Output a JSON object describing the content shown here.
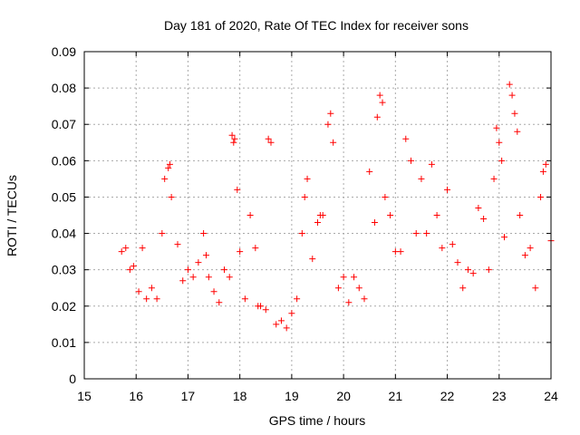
{
  "chart_data": {
    "type": "scatter",
    "title": "Day 181 of 2020, Rate Of TEC Index for receiver sons",
    "xlabel": "GPS time / hours",
    "ylabel": "ROTI / TECUs",
    "xlim": [
      15,
      24
    ],
    "ylim": [
      0,
      0.09
    ],
    "xticks": [
      15,
      16,
      17,
      18,
      19,
      20,
      21,
      22,
      23,
      24
    ],
    "yticks": [
      0,
      0.01,
      0.02,
      0.03,
      0.04,
      0.05,
      0.06,
      0.07,
      0.08,
      0.09
    ],
    "grid": true,
    "marker": "+",
    "series_color": "#ff0000",
    "series": [
      {
        "name": "ROTI",
        "x": [
          15.72,
          15.8,
          15.88,
          15.95,
          16.05,
          16.12,
          16.2,
          16.3,
          16.4,
          16.5,
          16.55,
          16.62,
          16.65,
          16.68,
          16.8,
          16.9,
          17.0,
          17.1,
          17.2,
          17.3,
          17.35,
          17.4,
          17.5,
          17.6,
          17.7,
          17.8,
          17.85,
          17.88,
          17.9,
          17.95,
          18.0,
          18.1,
          18.2,
          18.3,
          18.35,
          18.4,
          18.5,
          18.55,
          18.6,
          18.7,
          18.8,
          18.9,
          19.0,
          19.1,
          19.2,
          19.25,
          19.3,
          19.4,
          19.5,
          19.55,
          19.6,
          19.7,
          19.75,
          19.8,
          19.9,
          20.0,
          20.1,
          20.2,
          20.3,
          20.4,
          20.5,
          20.6,
          20.65,
          20.7,
          20.75,
          20.8,
          20.9,
          21.0,
          21.1,
          21.2,
          21.3,
          21.4,
          21.5,
          21.6,
          21.7,
          21.8,
          21.9,
          22.0,
          22.1,
          22.2,
          22.3,
          22.4,
          22.5,
          22.6,
          22.7,
          22.8,
          22.9,
          22.95,
          23.0,
          23.05,
          23.1,
          23.2,
          23.25,
          23.3,
          23.35,
          23.4,
          23.5,
          23.6,
          23.7,
          23.8,
          23.85,
          23.9,
          24.0
        ],
        "y": [
          0.035,
          0.036,
          0.03,
          0.031,
          0.024,
          0.036,
          0.022,
          0.025,
          0.022,
          0.04,
          0.055,
          0.058,
          0.059,
          0.05,
          0.037,
          0.027,
          0.03,
          0.028,
          0.032,
          0.04,
          0.034,
          0.028,
          0.024,
          0.021,
          0.03,
          0.028,
          0.067,
          0.065,
          0.066,
          0.052,
          0.035,
          0.022,
          0.045,
          0.036,
          0.02,
          0.02,
          0.019,
          0.066,
          0.065,
          0.015,
          0.016,
          0.014,
          0.018,
          0.022,
          0.04,
          0.05,
          0.055,
          0.033,
          0.043,
          0.045,
          0.045,
          0.07,
          0.073,
          0.065,
          0.025,
          0.028,
          0.021,
          0.028,
          0.025,
          0.022,
          0.057,
          0.043,
          0.072,
          0.078,
          0.076,
          0.05,
          0.045,
          0.035,
          0.035,
          0.066,
          0.06,
          0.04,
          0.055,
          0.04,
          0.059,
          0.045,
          0.036,
          0.052,
          0.037,
          0.032,
          0.025,
          0.03,
          0.029,
          0.047,
          0.044,
          0.03,
          0.055,
          0.069,
          0.065,
          0.06,
          0.039,
          0.081,
          0.078,
          0.073,
          0.068,
          0.045,
          0.034,
          0.036,
          0.025,
          0.05,
          0.057,
          0.059,
          0.038
        ]
      }
    ]
  }
}
